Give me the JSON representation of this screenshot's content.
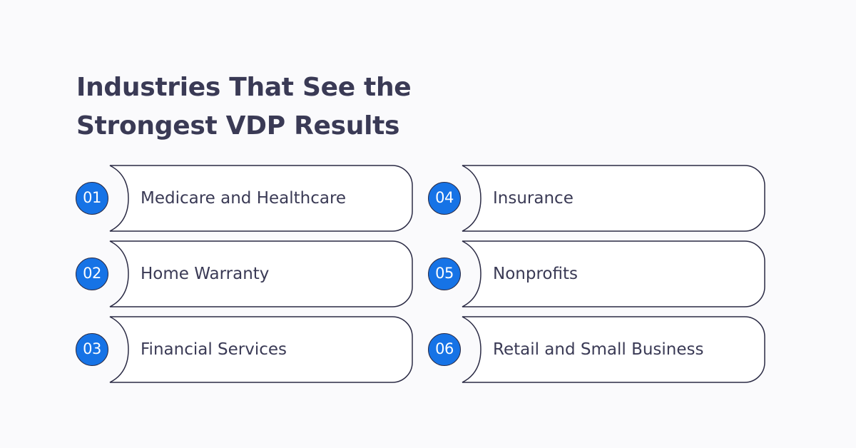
{
  "title": {
    "line1": "Industries That See the",
    "line2": "Strongest VDP Results"
  },
  "items": [
    {
      "number": "01",
      "label": "Medicare and Healthcare"
    },
    {
      "number": "02",
      "label": "Home Warranty"
    },
    {
      "number": "03",
      "label": "Financial Services"
    },
    {
      "number": "04",
      "label": "Insurance"
    },
    {
      "number": "05",
      "label": "Nonprofits"
    },
    {
      "number": "06",
      "label": "Retail and Small Business"
    }
  ],
  "colors": {
    "accent": "#1673e6",
    "text": "#3a3a55",
    "outline": "#2a2a44",
    "background": "#fafafc"
  }
}
